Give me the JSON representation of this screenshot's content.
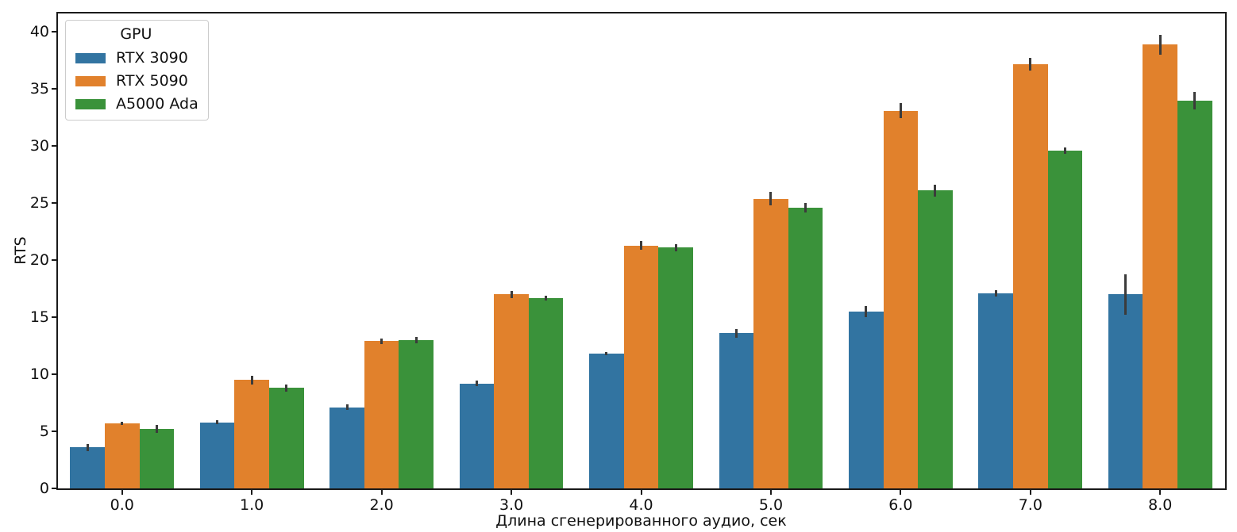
{
  "figure": {
    "background": "#ffffff"
  },
  "chart_data": {
    "type": "bar",
    "title": "",
    "xlabel": "Длина сгенерированного аудио, сек",
    "ylabel": "RTS",
    "categories": [
      "0.0",
      "1.0",
      "2.0",
      "3.0",
      "4.0",
      "5.0",
      "6.0",
      "7.0",
      "8.0"
    ],
    "series": [
      {
        "name": "RTX 3090",
        "color": "#3274a1",
        "values": [
          3.6,
          5.8,
          7.1,
          9.2,
          11.8,
          13.6,
          15.5,
          17.1,
          17.0
        ],
        "errors": [
          0.3,
          0.2,
          0.25,
          0.25,
          0.15,
          0.4,
          0.5,
          0.25,
          1.75
        ]
      },
      {
        "name": "RTX 5090",
        "color": "#e1812c",
        "values": [
          5.7,
          9.5,
          12.9,
          17.0,
          21.3,
          25.4,
          33.1,
          37.2,
          38.9
        ],
        "errors": [
          0.15,
          0.4,
          0.25,
          0.3,
          0.35,
          0.6,
          0.65,
          0.55,
          0.85
        ]
      },
      {
        "name": "A5000 Ada",
        "color": "#3a923a",
        "values": [
          5.2,
          8.8,
          13.0,
          16.7,
          21.1,
          24.6,
          26.1,
          29.6,
          34.0
        ],
        "errors": [
          0.35,
          0.3,
          0.3,
          0.2,
          0.3,
          0.4,
          0.55,
          0.3,
          0.75
        ]
      }
    ],
    "ylim": [
      0,
      41.7
    ],
    "y_ticks": [
      "0",
      "5",
      "10",
      "15",
      "20",
      "25",
      "30",
      "35",
      "40"
    ],
    "grid": false,
    "legend": {
      "title": "GPU",
      "position": "upper-left"
    },
    "error_bar_color": "#3b3b3b",
    "bar_group_width_fraction": 0.8
  }
}
